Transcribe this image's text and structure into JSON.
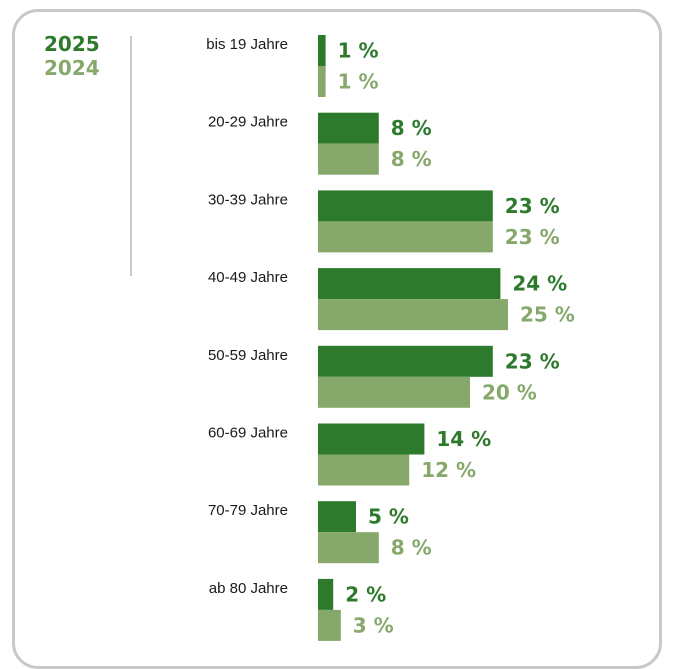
{
  "colors": {
    "series_2025": "#2e7a2c",
    "series_2024": "#86a96b",
    "frame": "#c8c8c8"
  },
  "legend": {
    "label_2025": "2025",
    "label_2024": "2024"
  },
  "chart_data": {
    "type": "bar",
    "orientation": "horizontal",
    "categories": [
      "bis 19 Jahre",
      "20-29 Jahre",
      "30-39 Jahre",
      "40-49 Jahre",
      "50-59 Jahre",
      "60-69 Jahre",
      "70-79 Jahre",
      "ab 80 Jahre"
    ],
    "series": [
      {
        "name": "2025",
        "values": [
          1,
          8,
          23,
          24,
          23,
          14,
          5,
          2
        ],
        "color": "#2e7a2c"
      },
      {
        "name": "2024",
        "values": [
          1,
          8,
          23,
          25,
          20,
          12,
          8,
          3
        ],
        "color": "#86a96b"
      }
    ],
    "value_labels_2025": [
      "1 %",
      "8 %",
      "23 %",
      "24 %",
      "23 %",
      "14 %",
      "5 %",
      "2 %"
    ],
    "value_labels_2024": [
      "1 %",
      "8 %",
      "23 %",
      "25 %",
      "20 %",
      "12 %",
      "8 %",
      "3 %"
    ],
    "unit": "%",
    "legend_position": "top-left",
    "grid": false
  }
}
